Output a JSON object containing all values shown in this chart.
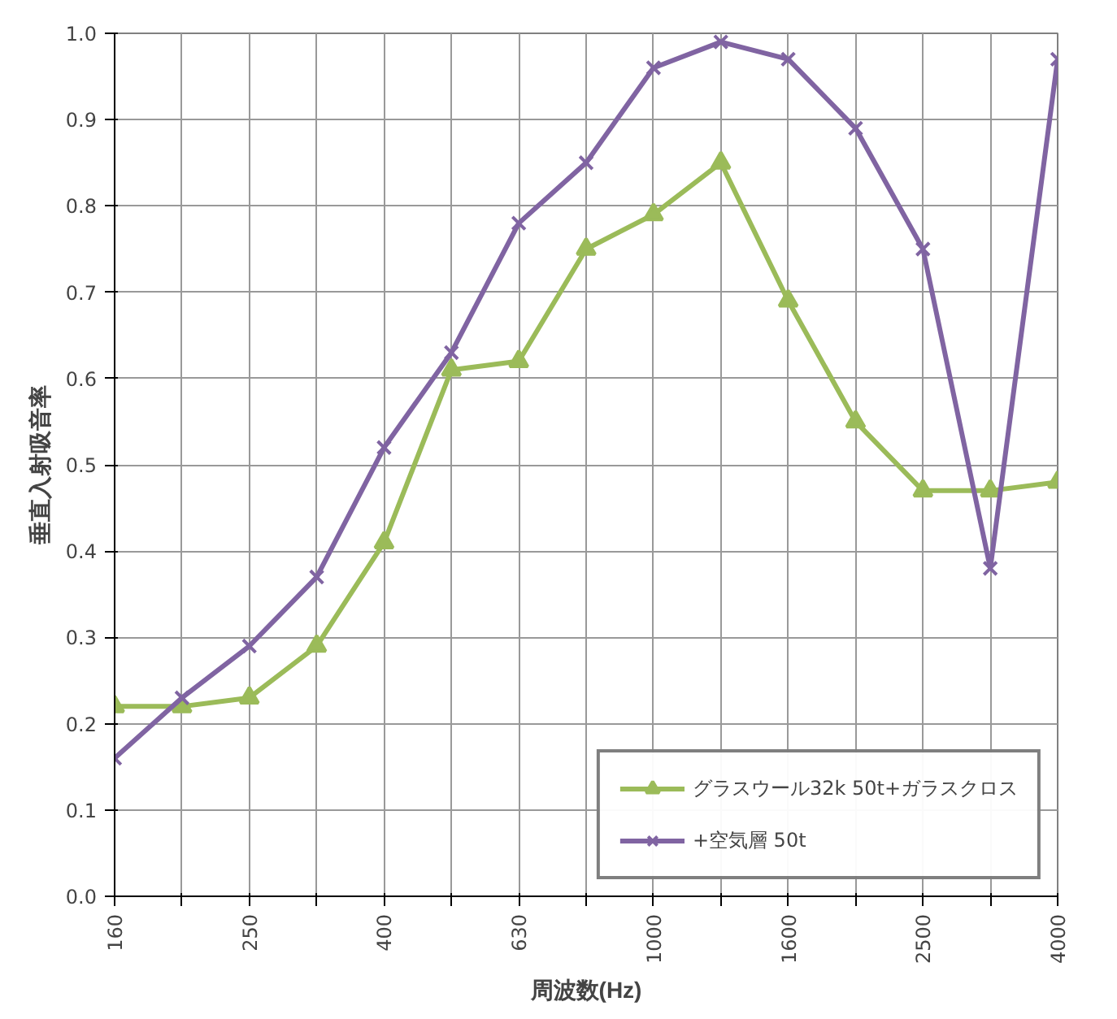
{
  "chart_data": {
    "type": "line",
    "xlabel": "周波数(Hz)",
    "ylabel": "垂直入射吸音率",
    "categories": [
      "160",
      null,
      "250",
      null,
      "400",
      null,
      "630",
      null,
      "1000",
      null,
      "1600",
      null,
      "2500",
      null,
      "4000"
    ],
    "series": [
      {
        "name": "グラスウール32k 50t+ガラスクロス",
        "color": "#9bbb59",
        "marker": "triangle",
        "values": [
          0.22,
          0.22,
          0.23,
          0.29,
          0.41,
          0.61,
          0.62,
          0.75,
          0.79,
          0.85,
          0.69,
          0.55,
          0.47,
          0.47,
          0.48
        ]
      },
      {
        "name": "+空気層 50t",
        "color": "#8064a2",
        "marker": "x",
        "values": [
          0.16,
          0.23,
          0.29,
          0.37,
          0.52,
          0.63,
          0.78,
          0.85,
          0.96,
          0.99,
          0.97,
          0.89,
          0.75,
          0.38,
          0.97
        ]
      }
    ],
    "ylim": [
      0,
      1
    ],
    "yticks": [
      {
        "value": 0,
        "label": "0.0"
      },
      0.1,
      0.2,
      0.3,
      0.4,
      0.5,
      0.6,
      0.7,
      0.8,
      0.9,
      {
        "value": 1,
        "label": "1.0"
      }
    ],
    "grid": true,
    "legend": "bottom right",
    "line_style": "solid"
  }
}
